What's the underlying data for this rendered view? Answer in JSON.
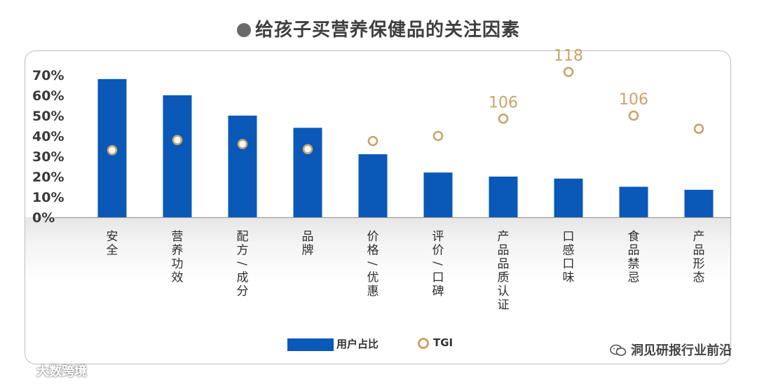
{
  "title": "●给孩子买营养保健品的关注因素",
  "legend": {
    "bar_label": "用户占比",
    "tgi_label": "TGI"
  },
  "watermark_wechat": "洞见研报行业前沿",
  "watermark_brand": "大数跨境",
  "colors": {
    "bar": "#0a58b8",
    "tgi": "#c9a46c",
    "tgi_label": "#c9a46c",
    "tick": "#3a3a3a",
    "category": "#2f2f2f"
  },
  "chart_data": {
    "type": "bar",
    "title": "给孩子买营养保健品的关注因素",
    "categories": [
      "安全",
      "营养功效",
      "配方/成分",
      "品牌",
      "价格/优惠",
      "评价/口碑",
      "产品品质认证",
      "口感口味",
      "食品禁忌",
      "产品形态"
    ],
    "y_ticks": [
      "0%",
      "10%",
      "20%",
      "30%",
      "40%",
      "50%",
      "60%",
      "70%"
    ],
    "ylim": [
      0,
      70
    ],
    "series": [
      {
        "name": "用户占比",
        "type": "bar",
        "values": [
          68,
          60,
          50,
          44,
          31,
          22,
          20,
          19,
          15,
          13.5
        ]
      },
      {
        "name": "TGI",
        "type": "scatter",
        "marker": "ring",
        "positions_pct": [
          33,
          38,
          36,
          33.5,
          37.5,
          40,
          48.5,
          71.5,
          50,
          43.5
        ],
        "labels": [
          "",
          "",
          "",
          "",
          "",
          "",
          "106",
          "118",
          "106",
          ""
        ]
      }
    ]
  }
}
